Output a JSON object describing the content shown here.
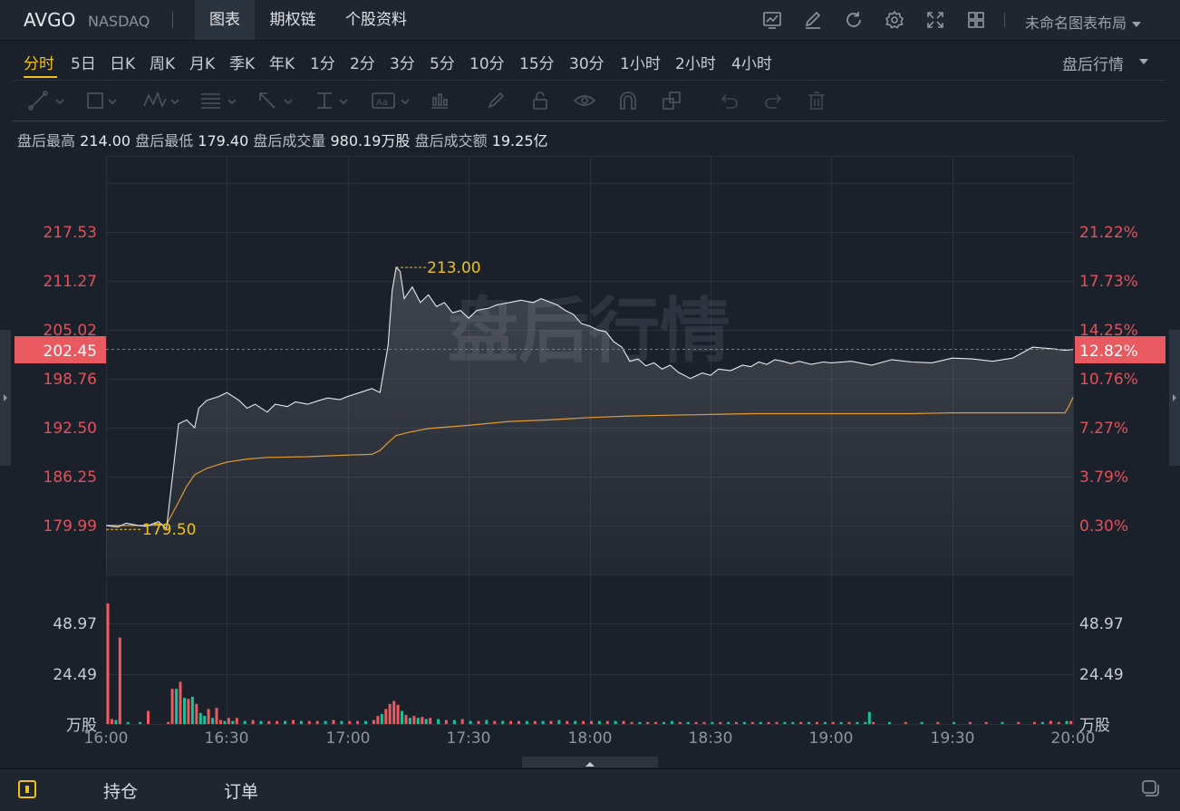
{
  "header": {
    "symbol": "AVGO",
    "exchange": "NASDAQ",
    "tabs": [
      "图表",
      "期权链",
      "个股资料"
    ],
    "active_tab": "图表",
    "layout_name": "未命名图表布局",
    "icons": [
      "chart-indicator-icon",
      "edit-icon",
      "refresh-icon",
      "settings-icon",
      "fullscreen-icon",
      "grid-layout-icon"
    ]
  },
  "periods": {
    "items": [
      "分时",
      "5日",
      "日K",
      "周K",
      "月K",
      "季K",
      "年K",
      "1分",
      "2分",
      "3分",
      "5分",
      "10分",
      "15分",
      "30分",
      "1小时",
      "2小时",
      "4小时"
    ],
    "active": "分时",
    "session": "盘后行情"
  },
  "drawing_tools": [
    "line-tool-icon",
    "rectangle-tool-icon",
    "pattern-tool-icon",
    "fibonacci-tool-icon",
    "arrow-tool-icon",
    "measure-tool-icon",
    "text-tool-icon",
    "annotation-tool-icon",
    "brush-icon",
    "lock-icon",
    "eye-icon",
    "magnet-icon",
    "clone-icon",
    "undo-icon",
    "redo-icon",
    "trash-icon"
  ],
  "stats": {
    "high_label": "盘后最高",
    "high": "214.00",
    "low_label": "盘后最低",
    "low": "179.40",
    "volume_label": "盘后成交量",
    "volume": "980.19万股",
    "turnover_label": "盘后成交额",
    "turnover": "19.25亿"
  },
  "chart_data": {
    "type": "line",
    "watermark": "盘后行情",
    "price_ticks": [
      "217.53",
      "211.27",
      "205.02",
      "198.76",
      "192.50",
      "186.25",
      "179.99"
    ],
    "percent_ticks": [
      "21.22%",
      "17.73%",
      "14.25%",
      "10.76%",
      "7.27%",
      "3.79%",
      "0.30%"
    ],
    "price_range": [
      179.99,
      217.53
    ],
    "current_price": "202.45",
    "current_percent": "12.82%",
    "max_marker": "213.00",
    "min_marker": "179.50",
    "x_ticks": [
      "16:00",
      "16:30",
      "17:00",
      "17:30",
      "18:00",
      "18:30",
      "19:00",
      "19:30",
      "20:00"
    ],
    "volume_ticks": [
      "48.97",
      "24.49",
      "万股"
    ],
    "volume_range": [
      0,
      73.46
    ],
    "up_color": "#f05a5f",
    "down_color": "#19c29a",
    "price_color": "#e6e8ec",
    "avg_color": "#e29a2e",
    "series": [
      {
        "name": "price",
        "x_minutes": [
          0,
          3,
          5,
          8,
          10,
          13,
          15,
          18,
          20,
          22,
          23,
          25,
          28,
          30,
          33,
          35,
          37,
          40,
          42,
          45,
          47,
          50,
          53,
          55,
          58,
          60,
          63,
          66,
          68,
          70,
          71,
          72,
          73,
          74,
          76,
          78,
          80,
          82,
          84,
          86,
          88,
          90,
          92,
          95,
          97,
          100,
          103,
          106,
          108,
          110,
          112,
          114,
          116,
          118,
          120,
          122,
          124,
          126,
          128,
          130,
          132,
          134,
          136,
          138,
          140,
          142,
          145,
          148,
          150,
          152,
          155,
          158,
          160,
          162,
          164,
          166,
          168,
          170,
          172,
          175,
          178,
          180,
          185,
          190,
          195,
          200,
          205,
          210,
          215,
          220,
          225,
          230,
          235,
          238,
          240
        ],
        "values": [
          180.0,
          179.8,
          180.3,
          180.0,
          179.9,
          180.5,
          179.6,
          193.0,
          193.5,
          192.5,
          195.0,
          196.0,
          196.5,
          197.0,
          196.0,
          195.0,
          195.5,
          194.5,
          195.5,
          195.2,
          195.8,
          195.5,
          196.0,
          196.3,
          196.1,
          196.5,
          197.0,
          197.5,
          197.0,
          203.0,
          210.0,
          213.0,
          212.5,
          209.0,
          210.5,
          208.5,
          209.5,
          208.0,
          208.5,
          207.2,
          207.5,
          206.5,
          207.5,
          207.8,
          208.2,
          208.5,
          208.8,
          208.5,
          209.0,
          208.6,
          208.2,
          207.5,
          207.0,
          205.8,
          205.5,
          205.0,
          204.8,
          203.5,
          202.8,
          201.0,
          201.3,
          200.4,
          200.8,
          200.0,
          200.5,
          199.6,
          198.8,
          199.5,
          199.2,
          200.0,
          199.8,
          200.5,
          200.3,
          200.9,
          200.6,
          201.2,
          201.0,
          200.7,
          201.0,
          200.6,
          200.9,
          200.8,
          201.0,
          200.5,
          201.2,
          200.9,
          200.8,
          201.4,
          201.3,
          201.0,
          201.4,
          202.8,
          202.6,
          202.4,
          202.5
        ]
      },
      {
        "name": "avg",
        "x_minutes": [
          0,
          10,
          15,
          18,
          20,
          22,
          25,
          28,
          30,
          35,
          40,
          50,
          60,
          66,
          68,
          70,
          72,
          75,
          80,
          90,
          100,
          110,
          120,
          130,
          140,
          150,
          160,
          170,
          175,
          180,
          185,
          190,
          200,
          210,
          220,
          230,
          238,
          239,
          240
        ],
        "values": [
          180.0,
          180.0,
          180.1,
          183.0,
          185.0,
          186.5,
          187.3,
          187.8,
          188.1,
          188.5,
          188.7,
          188.8,
          189.0,
          189.1,
          189.6,
          190.6,
          191.5,
          191.9,
          192.4,
          192.8,
          193.3,
          193.5,
          193.8,
          194.0,
          194.1,
          194.2,
          194.3,
          194.3,
          194.3,
          194.3,
          194.3,
          194.3,
          194.3,
          194.4,
          194.4,
          194.4,
          194.4,
          195.3,
          196.4
        ]
      }
    ],
    "volume_bars": [
      {
        "x": 0,
        "v": 60,
        "dir": "up"
      },
      {
        "x": 1,
        "v": 2.5,
        "dir": "up"
      },
      {
        "x": 2,
        "v": 2,
        "dir": "down"
      },
      {
        "x": 3,
        "v": 43,
        "dir": "up"
      },
      {
        "x": 5,
        "v": 1,
        "dir": "down"
      },
      {
        "x": 8,
        "v": 1,
        "dir": "down"
      },
      {
        "x": 10,
        "v": 6.5,
        "dir": "up"
      },
      {
        "x": 15,
        "v": 1,
        "dir": "up"
      },
      {
        "x": 16,
        "v": 17.5,
        "dir": "up"
      },
      {
        "x": 17,
        "v": 17.5,
        "dir": "down"
      },
      {
        "x": 18,
        "v": 21,
        "dir": "up"
      },
      {
        "x": 19,
        "v": 13,
        "dir": "down"
      },
      {
        "x": 20,
        "v": 12.5,
        "dir": "up"
      },
      {
        "x": 21,
        "v": 13.5,
        "dir": "down"
      },
      {
        "x": 22,
        "v": 10,
        "dir": "up"
      },
      {
        "x": 23,
        "v": 5.5,
        "dir": "down"
      },
      {
        "x": 24,
        "v": 4,
        "dir": "down"
      },
      {
        "x": 25,
        "v": 7.5,
        "dir": "up"
      },
      {
        "x": 26,
        "v": 3,
        "dir": "down"
      },
      {
        "x": 27,
        "v": 8,
        "dir": "up"
      },
      {
        "x": 28,
        "v": 2,
        "dir": "up"
      },
      {
        "x": 29,
        "v": 1.5,
        "dir": "down"
      },
      {
        "x": 30,
        "v": 3,
        "dir": "up"
      },
      {
        "x": 31,
        "v": 1.5,
        "dir": "down"
      },
      {
        "x": 32,
        "v": 3,
        "dir": "up"
      },
      {
        "x": 34,
        "v": 1.5,
        "dir": "down"
      },
      {
        "x": 36,
        "v": 2,
        "dir": "up"
      },
      {
        "x": 38,
        "v": 1.5,
        "dir": "down"
      },
      {
        "x": 40,
        "v": 1.5,
        "dir": "up"
      },
      {
        "x": 42,
        "v": 1.5,
        "dir": "up"
      },
      {
        "x": 44,
        "v": 1.5,
        "dir": "down"
      },
      {
        "x": 46,
        "v": 2,
        "dir": "up"
      },
      {
        "x": 48,
        "v": 1.5,
        "dir": "down"
      },
      {
        "x": 50,
        "v": 1.5,
        "dir": "up"
      },
      {
        "x": 52,
        "v": 1.5,
        "dir": "up"
      },
      {
        "x": 54,
        "v": 1.5,
        "dir": "down"
      },
      {
        "x": 56,
        "v": 2,
        "dir": "up"
      },
      {
        "x": 58,
        "v": 1.5,
        "dir": "down"
      },
      {
        "x": 60,
        "v": 1.5,
        "dir": "up"
      },
      {
        "x": 62,
        "v": 1.5,
        "dir": "up"
      },
      {
        "x": 64,
        "v": 1.5,
        "dir": "down"
      },
      {
        "x": 66,
        "v": 2,
        "dir": "up"
      },
      {
        "x": 67,
        "v": 4,
        "dir": "up"
      },
      {
        "x": 68,
        "v": 5,
        "dir": "down"
      },
      {
        "x": 69,
        "v": 7.5,
        "dir": "up"
      },
      {
        "x": 70,
        "v": 10,
        "dir": "up"
      },
      {
        "x": 71,
        "v": 11.5,
        "dir": "up"
      },
      {
        "x": 72,
        "v": 9.5,
        "dir": "up"
      },
      {
        "x": 73,
        "v": 6.5,
        "dir": "down"
      },
      {
        "x": 74,
        "v": 4.5,
        "dir": "up"
      },
      {
        "x": 75,
        "v": 3,
        "dir": "down"
      },
      {
        "x": 76,
        "v": 4,
        "dir": "up"
      },
      {
        "x": 77,
        "v": 3,
        "dir": "down"
      },
      {
        "x": 78,
        "v": 3.5,
        "dir": "up"
      },
      {
        "x": 79,
        "v": 2.5,
        "dir": "down"
      },
      {
        "x": 80,
        "v": 3,
        "dir": "up"
      },
      {
        "x": 82,
        "v": 2.5,
        "dir": "down"
      },
      {
        "x": 84,
        "v": 2,
        "dir": "up"
      },
      {
        "x": 86,
        "v": 2,
        "dir": "down"
      },
      {
        "x": 88,
        "v": 2.5,
        "dir": "up"
      },
      {
        "x": 90,
        "v": 1.5,
        "dir": "down"
      },
      {
        "x": 92,
        "v": 1.5,
        "dir": "up"
      },
      {
        "x": 94,
        "v": 2,
        "dir": "down"
      },
      {
        "x": 96,
        "v": 1.5,
        "dir": "up"
      },
      {
        "x": 98,
        "v": 1.5,
        "dir": "down"
      },
      {
        "x": 100,
        "v": 1.5,
        "dir": "up"
      },
      {
        "x": 102,
        "v": 1.5,
        "dir": "up"
      },
      {
        "x": 104,
        "v": 1.5,
        "dir": "down"
      },
      {
        "x": 106,
        "v": 1.5,
        "dir": "up"
      },
      {
        "x": 108,
        "v": 1.5,
        "dir": "down"
      },
      {
        "x": 110,
        "v": 1.5,
        "dir": "up"
      },
      {
        "x": 112,
        "v": 2,
        "dir": "down"
      },
      {
        "x": 114,
        "v": 1.5,
        "dir": "up"
      },
      {
        "x": 116,
        "v": 1.5,
        "dir": "down"
      },
      {
        "x": 118,
        "v": 1.5,
        "dir": "up"
      },
      {
        "x": 120,
        "v": 1.5,
        "dir": "up"
      },
      {
        "x": 122,
        "v": 1.5,
        "dir": "down"
      },
      {
        "x": 124,
        "v": 1.5,
        "dir": "up"
      },
      {
        "x": 126,
        "v": 1.5,
        "dir": "down"
      },
      {
        "x": 128,
        "v": 1.5,
        "dir": "up"
      },
      {
        "x": 130,
        "v": 1,
        "dir": "up"
      },
      {
        "x": 132,
        "v": 1,
        "dir": "down"
      },
      {
        "x": 134,
        "v": 1,
        "dir": "up"
      },
      {
        "x": 136,
        "v": 1,
        "dir": "up"
      },
      {
        "x": 138,
        "v": 1,
        "dir": "down"
      },
      {
        "x": 140,
        "v": 1.5,
        "dir": "down"
      },
      {
        "x": 142,
        "v": 1,
        "dir": "up"
      },
      {
        "x": 144,
        "v": 1,
        "dir": "down"
      },
      {
        "x": 146,
        "v": 1,
        "dir": "up"
      },
      {
        "x": 148,
        "v": 1,
        "dir": "up"
      },
      {
        "x": 150,
        "v": 1,
        "dir": "down"
      },
      {
        "x": 152,
        "v": 1,
        "dir": "up"
      },
      {
        "x": 154,
        "v": 1,
        "dir": "down"
      },
      {
        "x": 156,
        "v": 1,
        "dir": "up"
      },
      {
        "x": 158,
        "v": 1,
        "dir": "down"
      },
      {
        "x": 160,
        "v": 1,
        "dir": "up"
      },
      {
        "x": 162,
        "v": 1,
        "dir": "down"
      },
      {
        "x": 164,
        "v": 1,
        "dir": "up"
      },
      {
        "x": 166,
        "v": 1,
        "dir": "up"
      },
      {
        "x": 168,
        "v": 1,
        "dir": "down"
      },
      {
        "x": 170,
        "v": 1,
        "dir": "down"
      },
      {
        "x": 172,
        "v": 1,
        "dir": "up"
      },
      {
        "x": 174,
        "v": 1,
        "dir": "down"
      },
      {
        "x": 176,
        "v": 1,
        "dir": "up"
      },
      {
        "x": 178,
        "v": 1,
        "dir": "down"
      },
      {
        "x": 180,
        "v": 1,
        "dir": "up"
      },
      {
        "x": 182,
        "v": 1,
        "dir": "down"
      },
      {
        "x": 184,
        "v": 1,
        "dir": "up"
      },
      {
        "x": 186,
        "v": 1,
        "dir": "down"
      },
      {
        "x": 188,
        "v": 1,
        "dir": "down"
      },
      {
        "x": 189,
        "v": 6,
        "dir": "down"
      },
      {
        "x": 190,
        "v": 1,
        "dir": "up"
      },
      {
        "x": 194,
        "v": 1,
        "dir": "down"
      },
      {
        "x": 198,
        "v": 1,
        "dir": "up"
      },
      {
        "x": 202,
        "v": 1,
        "dir": "down"
      },
      {
        "x": 206,
        "v": 1,
        "dir": "up"
      },
      {
        "x": 210,
        "v": 1,
        "dir": "down"
      },
      {
        "x": 214,
        "v": 1,
        "dir": "up"
      },
      {
        "x": 218,
        "v": 1,
        "dir": "up"
      },
      {
        "x": 222,
        "v": 1,
        "dir": "down"
      },
      {
        "x": 226,
        "v": 1,
        "dir": "up"
      },
      {
        "x": 230,
        "v": 1,
        "dir": "up"
      },
      {
        "x": 232,
        "v": 1,
        "dir": "down"
      },
      {
        "x": 234,
        "v": 1.5,
        "dir": "up"
      },
      {
        "x": 236,
        "v": 1,
        "dir": "up"
      },
      {
        "x": 238,
        "v": 1.5,
        "dir": "down"
      },
      {
        "x": 239,
        "v": 1.5,
        "dir": "up"
      }
    ]
  },
  "bottom": {
    "tabs": [
      "持仓",
      "订单"
    ]
  }
}
